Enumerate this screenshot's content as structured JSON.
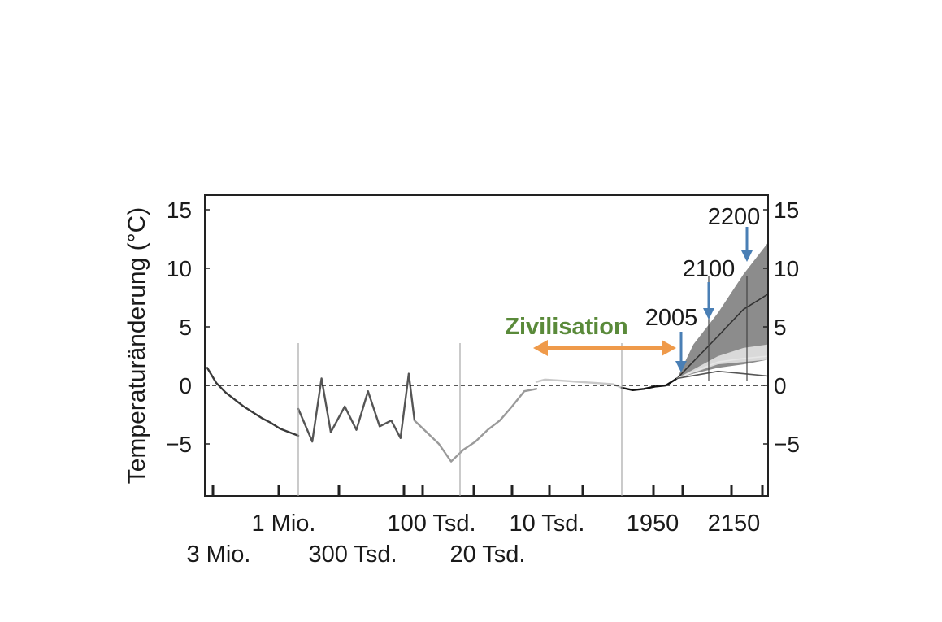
{
  "chart_data": {
    "type": "line",
    "title": "",
    "ylabel": "Temperaturänderung (°C)",
    "ylim": [
      -9.5,
      16.2
    ],
    "yticks": [
      15,
      10,
      5,
      0,
      -5
    ],
    "yticks_right": [
      15,
      10,
      5,
      0,
      -5
    ],
    "zero_reference": "dashed",
    "x_scale": "piecewise (segments separated by vertical lines)",
    "x_tick_labels_row1": [
      "1 Mio.",
      "100 Tsd.",
      "10 Tsd.",
      "1950",
      "2150"
    ],
    "x_tick_labels_row2": [
      "3 Mio.",
      "300 Tsd.",
      "20 Tsd."
    ],
    "segments": [
      {
        "name": "",
        "from": "3 Mio.",
        "to": "1 Mio.",
        "series": [
          {
            "name": "",
            "color": "#3a3a3a",
            "x": [
              0,
              0.1,
              0.2,
              0.3,
              0.4,
              0.5,
              0.6,
              0.7,
              0.8,
              0.9,
              1.0
            ],
            "y": [
              1.5,
              0.2,
              -0.6,
              -1.2,
              -1.8,
              -2.3,
              -2.8,
              -3.2,
              -3.7,
              -4.0,
              -4.3
            ]
          }
        ]
      },
      {
        "name": "",
        "from": "1 Mio.",
        "to": "100 Tsd.",
        "series": [
          {
            "name": "",
            "color": "#555555",
            "x": [
              0,
              0.12,
              0.2,
              0.28,
              0.4,
              0.5,
              0.6,
              0.7,
              0.8,
              0.88,
              0.95,
              1.0
            ],
            "y": [
              -2.0,
              -4.8,
              0.6,
              -4.0,
              -1.8,
              -3.8,
              -0.5,
              -3.5,
              -3.0,
              -4.5,
              1.0,
              -3.0
            ]
          }
        ]
      },
      {
        "name": "",
        "from": "100 Tsd.",
        "to": "10 Tsd.",
        "series": [
          {
            "name": "",
            "color": "#9a9a9a",
            "x": [
              0,
              0.1,
              0.2,
              0.3,
              0.4,
              0.5,
              0.6,
              0.7,
              0.8,
              0.9,
              1.0
            ],
            "y": [
              -3.0,
              -4.0,
              -5.0,
              -6.5,
              -5.5,
              -4.8,
              -3.8,
              -3.0,
              -1.8,
              -0.5,
              -0.3
            ]
          }
        ]
      },
      {
        "name": "",
        "from": "10 Tsd.",
        "to": "1950",
        "series": [
          {
            "name": "",
            "color": "#c8c8c8",
            "x": [
              0,
              0.1,
              0.3,
              0.5,
              0.7,
              0.9,
              1.0
            ],
            "y": [
              0.3,
              0.5,
              0.4,
              0.3,
              0.2,
              0.1,
              -0.2
            ]
          }
        ]
      },
      {
        "name": "",
        "from": "1950",
        "to": "2005",
        "series": [
          {
            "name": "",
            "color": "#111111",
            "x": [
              0,
              0.2,
              0.4,
              0.6,
              0.8,
              1.0
            ],
            "y": [
              -0.2,
              -0.4,
              -0.3,
              -0.1,
              0.0,
              0.6
            ]
          }
        ]
      },
      {
        "name": "",
        "from": "2005",
        "to": "2300",
        "projection": true,
        "band_outer": {
          "x": [
            0,
            0.18,
            0.45,
            0.73,
            1.0
          ],
          "lower": [
            0.6,
            1.0,
            1.5,
            1.8,
            2.2
          ],
          "upper": [
            0.6,
            3.5,
            6.2,
            9.5,
            12.2
          ]
        },
        "band_inner": {
          "x": [
            0,
            0.45,
            0.73,
            1.0
          ],
          "lower": [
            0.6,
            1.8,
            2.0,
            2.2
          ],
          "upper": [
            0.6,
            2.5,
            3.2,
            3.5
          ]
        },
        "series": [
          {
            "name": "",
            "color": "#333333",
            "x": [
              0,
              0.45,
              0.73,
              1.0
            ],
            "y": [
              0.6,
              4.2,
              6.5,
              7.8
            ]
          },
          {
            "name": "",
            "color": "#e6e6e6",
            "x": [
              0,
              0.45,
              0.73,
              1.0
            ],
            "y": [
              0.6,
              2.0,
              2.3,
              2.5
            ]
          },
          {
            "name": "",
            "color": "#555555",
            "x": [
              0,
              0.45,
              0.73,
              1.0
            ],
            "y": [
              0.6,
              1.2,
              1.0,
              0.8
            ]
          }
        ]
      }
    ],
    "annotations": [
      {
        "text": "Zivilisation",
        "color": "#5a8a3a",
        "type": "double-arrow",
        "arrow_color": "#ef9a4a",
        "from": "10 Tsd.",
        "to": "2005"
      },
      {
        "text": "2005",
        "type": "arrow",
        "arrow_color": "#4a7fb5"
      },
      {
        "text": "2100",
        "type": "arrow",
        "arrow_color": "#4a7fb5"
      },
      {
        "text": "2200",
        "type": "arrow",
        "arrow_color": "#4a7fb5"
      }
    ]
  }
}
